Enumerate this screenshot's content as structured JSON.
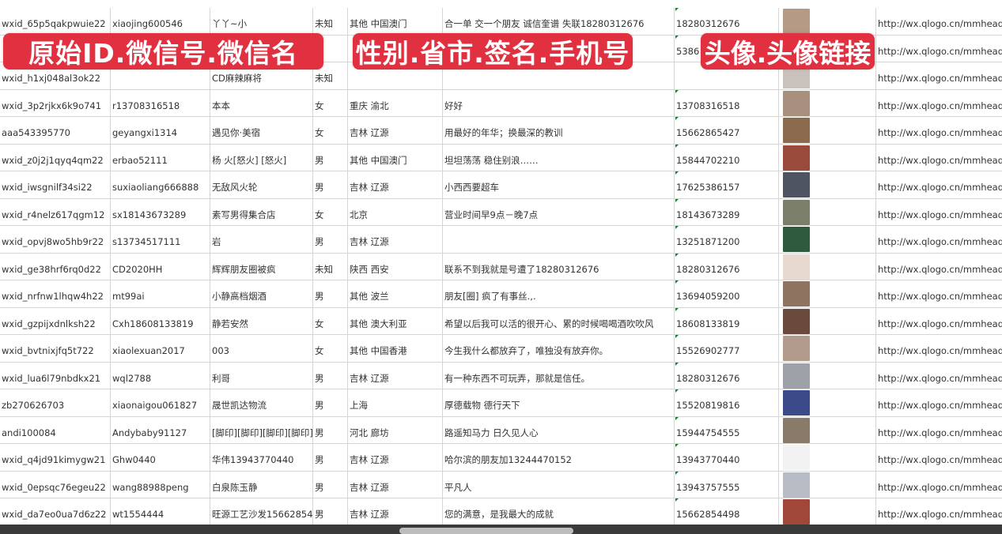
{
  "overlays": [
    "原始ID.微信号.微信名",
    "性别.省市.签名.手机号",
    "头像.头像链接"
  ],
  "rows": [
    {
      "id": "wxid_65p5qakpwuie22",
      "wechat": "xiaojing600546",
      "name": "丫丫~小",
      "gender": "未知",
      "region": "其他 中国澳门",
      "signature": "合一单 交一个朋友 诚信奎谱 失联18280312676",
      "phone": "18280312676",
      "avatar_color": "#b59a86",
      "url": "http://wx.qlogo.cn/mmhead"
    },
    {
      "id": "",
      "wechat": "",
      "name": "",
      "gender": "",
      "region": "",
      "signature": "",
      "phone": "5386",
      "avatar_color": "#6a7fa8",
      "url": "http://wx.qlogo.cn/mmhead"
    },
    {
      "id": "wxid_h1xj048al3ok22",
      "wechat": "",
      "name": "CD麻辣麻将",
      "gender": "未知",
      "region": "",
      "signature": "",
      "phone": "",
      "avatar_color": "#c9c1bb",
      "url": "http://wx.qlogo.cn/mmhead"
    },
    {
      "id": "wxid_3p2rjkx6k9o741",
      "wechat": "r13708316518",
      "name": "本本",
      "gender": "女",
      "region": "重庆 渝北",
      "signature": "好好",
      "phone": "13708316518",
      "avatar_color": "#a88f7e",
      "url": "http://wx.qlogo.cn/mmhead"
    },
    {
      "id": "aaa543395770",
      "wechat": "geyangxi1314",
      "name": "遇见你·美宿",
      "gender": "女",
      "region": "吉林 辽源",
      "signature": "用最好的年华；换最深的教训",
      "phone": "15662865427",
      "avatar_color": "#8c6a4e",
      "url": "http://wx.qlogo.cn/mmhead"
    },
    {
      "id": "wxid_z0j2j1qyq4qm22",
      "wechat": "erbao52111",
      "name": "杨 火[怒火] [怒火]",
      "gender": "男",
      "region": "其他 中国澳门",
      "signature": "坦坦荡荡 稳住别浪……",
      "phone": "15844702210",
      "avatar_color": "#9a4a3a",
      "url": "http://wx.qlogo.cn/mmhead"
    },
    {
      "id": "wxid_iwsgnilf34si22",
      "wechat": "suxiaoliang666888",
      "name": "无敌风火轮",
      "gender": "男",
      "region": "吉林 辽源",
      "signature": "小西西要超车",
      "phone": "17625386157",
      "avatar_color": "#4f5560",
      "url": "http://wx.qlogo.cn/mmhead"
    },
    {
      "id": "wxid_r4nelz617qgm12",
      "wechat": "sx18143673289",
      "name": "素写男得集合店",
      "gender": "女",
      "region": "北京",
      "signature": "营业时间早9点－晚7点",
      "phone": "18143673289",
      "avatar_color": "#7b7f6a",
      "url": "http://wx.qlogo.cn/mmhead"
    },
    {
      "id": "wxid_opvj8wo5hb9r22",
      "wechat": "s13734517111",
      "name": "岩",
      "gender": "男",
      "region": "吉林 辽源",
      "signature": "",
      "phone": "13251871200",
      "avatar_color": "#2f5a3c",
      "url": "http://wx.qlogo.cn/mmhead"
    },
    {
      "id": "wxid_ge38hrf6rq0d22",
      "wechat": "CD2020HH",
      "name": "辉辉朋友圈被疯",
      "gender": "未知",
      "region": "陕西 西安",
      "signature": "联系不到我就是号遭了18280312676",
      "phone": "18280312676",
      "avatar_color": "#e8d9d0",
      "url": "http://wx.qlogo.cn/mmhead"
    },
    {
      "id": "wxid_nrfnw1lhqw4h22",
      "wechat": "mt99ai",
      "name": "小静高档烟酒",
      "gender": "男",
      "region": "其他 波兰",
      "signature": "朋友[圈] 疯了有事丝.,.",
      "phone": "13694059200",
      "avatar_color": "#8e7460",
      "url": "http://wx.qlogo.cn/mmhead"
    },
    {
      "id": "wxid_gzpijxdnlksh22",
      "wechat": "Cxh18608133819",
      "name": "静若安然",
      "gender": "女",
      "region": "其他 澳大利亚",
      "signature": "希望以后我可以活的很开心、累的时候喝喝酒吹吹风",
      "phone": "18608133819",
      "avatar_color": "#6b4a3e",
      "url": "http://wx.qlogo.cn/mmhead"
    },
    {
      "id": "wxid_bvtnixjfq5t722",
      "wechat": "xiaolexuan2017",
      "name": "003",
      "gender": "女",
      "region": "其他 中国香港",
      "signature": "今生我什么都放弃了，唯独没有放弃你。",
      "phone": "15526902777",
      "avatar_color": "#b29a8c",
      "url": "http://wx.qlogo.cn/mmhead"
    },
    {
      "id": "wxid_lua6l79nbdkx21",
      "wechat": "wql2788",
      "name": "利哥",
      "gender": "男",
      "region": "吉林 辽源",
      "signature": "有一种东西不可玩弄，那就是信任。",
      "phone": "18280312676",
      "avatar_color": "#9ea2a8",
      "url": "http://wx.qlogo.cn/mmhead"
    },
    {
      "id": "zb270626703",
      "wechat": "xiaonaigou061827",
      "name": "晟世凯达物流",
      "gender": "男",
      "region": "上海",
      "signature": "厚德载物 德行天下",
      "phone": "15520819816",
      "avatar_color": "#3b4b8a",
      "url": "http://wx.qlogo.cn/mmhead"
    },
    {
      "id": "andi100084",
      "wechat": "Andybaby91127",
      "name": "[脚印][脚印][脚印][脚印]",
      "gender": "男",
      "region": "河北 廊坊",
      "signature": "路遥知马力 日久见人心",
      "phone": "15944754555",
      "avatar_color": "#8a7a6a",
      "url": "http://wx.qlogo.cn/mmhead"
    },
    {
      "id": "wxid_q4jd91kimygw21",
      "wechat": "Ghw0440",
      "name": "华伟13943770440",
      "gender": "男",
      "region": "吉林 辽源",
      "signature": "哈尔滨的朋友加13244470152",
      "phone": "13943770440",
      "avatar_color": "#f2f2f2",
      "url": "http://wx.qlogo.cn/mmhead"
    },
    {
      "id": "wxid_0epsqc76egeu22",
      "wechat": "wang88988peng",
      "name": "白泉陈玉静",
      "gender": "男",
      "region": "吉林 辽源",
      "signature": "平凡人",
      "phone": "13943757555",
      "avatar_color": "#b8bcc4",
      "url": "http://wx.qlogo.cn/mmhead"
    },
    {
      "id": "wxid_da7eo0ua7d6z22",
      "wechat": "wt1554444",
      "name": "旺源工艺沙发15662854498",
      "gender": "男",
      "region": "吉林 辽源",
      "signature": "您的满意，是我最大的成就",
      "phone": "15662854498",
      "avatar_color": "#a0473a",
      "url": "http://wx.qlogo.cn/mmhead"
    },
    {
      "id": "",
      "wechat": "",
      "name": "",
      "gender": "",
      "region": "",
      "signature": "",
      "phone": "",
      "avatar_color": "#5a6a9a",
      "url": ""
    }
  ]
}
